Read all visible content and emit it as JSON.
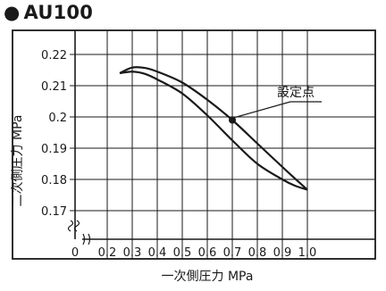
{
  "header": {
    "bullet": "●",
    "title": "AU100"
  },
  "chart_data": {
    "type": "line",
    "title": "AU100",
    "xlabel": "一次側圧力 MPa",
    "ylabel": "二次側圧力 MPa",
    "xlim": [
      0,
      1.0
    ],
    "ylim": [
      0.165,
      0.225
    ],
    "x_break_after": 0.2,
    "y_break_below": 0.17,
    "xticks": [
      "0",
      "0.2",
      "0.3",
      "0.4",
      "0.5",
      "0.6",
      "0.7",
      "0.8",
      "0.9",
      "1.0"
    ],
    "xtick_values": [
      0,
      0.2,
      0.3,
      0.4,
      0.5,
      0.6,
      0.7,
      0.8,
      0.9,
      1.0
    ],
    "yticks": [
      "0.17",
      "0.18",
      "0.19",
      "0.2",
      "0.21",
      "0.22"
    ],
    "ytick_values": [
      0.17,
      0.18,
      0.19,
      0.2,
      0.21,
      0.22
    ],
    "grid": true,
    "series": [
      {
        "name": "",
        "x": [
          0.25,
          0.3,
          0.35,
          0.4,
          0.5,
          0.6,
          0.7,
          0.8,
          0.9,
          0.95,
          1.0
        ],
        "y": [
          0.214,
          0.2158,
          0.2157,
          0.2145,
          0.211,
          0.2055,
          0.199,
          0.1915,
          0.184,
          0.1803,
          0.1767
        ]
      },
      {
        "name": "",
        "x": [
          0.25,
          0.3,
          0.35,
          0.4,
          0.5,
          0.6,
          0.7,
          0.8,
          0.9,
          0.95,
          1.0
        ],
        "y": [
          0.214,
          0.2145,
          0.2138,
          0.212,
          0.2075,
          0.2005,
          0.1925,
          0.185,
          0.18,
          0.178,
          0.1767
        ]
      }
    ],
    "annotations": [
      {
        "text": "設定点",
        "x": 0.7,
        "y": 0.199
      }
    ]
  }
}
